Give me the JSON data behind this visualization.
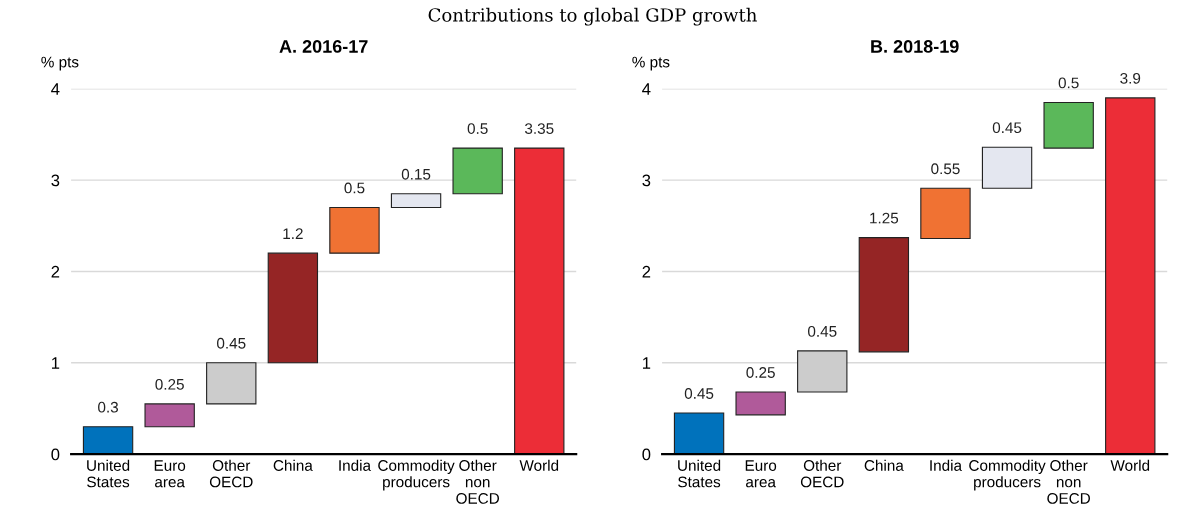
{
  "chart_data": [
    {
      "type": "bar",
      "title": "A. 2016-17",
      "subtitle": "Contributions to global GDP growth",
      "ylabel": "% pts",
      "categories": [
        "United\nStates",
        "Euro\narea",
        "Other\nOECD",
        "China",
        "India",
        "Commodity\nproducers",
        "Other\nnon\nOECD",
        "World"
      ],
      "values": [
        0.3,
        0.25,
        0.45,
        1.2,
        0.5,
        0.15,
        0.5,
        3.35
      ],
      "base": [
        0,
        0.3,
        0.55,
        1.0,
        2.2,
        2.7,
        2.85,
        0
      ],
      "colors": [
        "#0072bc",
        "#b05a9a",
        "#cccccc",
        "#952525",
        "#f07233",
        "#e4e7f0",
        "#5bb85a",
        "#ec2d37"
      ],
      "ylim": [
        0,
        4
      ],
      "yticks": [
        0,
        1,
        2,
        3,
        4
      ],
      "grid": "y",
      "data_labels": true
    },
    {
      "type": "bar",
      "title": "B. 2018-19",
      "ylabel": "% pts",
      "categories": [
        "United\nStates",
        "Euro\narea",
        "Other\nOECD",
        "China",
        "India",
        "Commodity\nproducers",
        "Other\nnon\nOECD",
        "World"
      ],
      "values": [
        0.45,
        0.25,
        0.45,
        1.25,
        0.55,
        0.45,
        0.5,
        3.9
      ],
      "base": [
        0,
        0.43,
        0.68,
        1.12,
        2.36,
        2.91,
        3.35,
        0
      ],
      "colors": [
        "#0072bc",
        "#b05a9a",
        "#cccccc",
        "#952525",
        "#f07233",
        "#e4e7f0",
        "#5bb85a",
        "#ec2d37"
      ],
      "ylim": [
        0,
        4
      ],
      "yticks": [
        0,
        1,
        2,
        3,
        4
      ],
      "grid": "y",
      "data_labels": true
    }
  ]
}
